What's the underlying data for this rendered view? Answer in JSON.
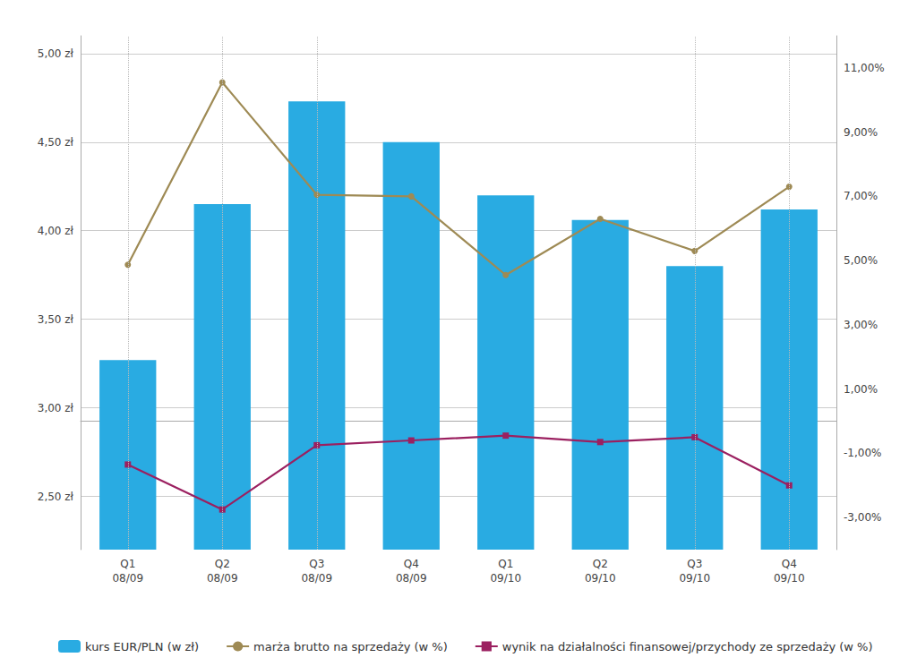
{
  "chart_data": {
    "type": "bar",
    "categories": [
      "Q1\n08/09",
      "Q2\n08/09",
      "Q3\n08/09",
      "Q4\n08/09",
      "Q1\n09/10",
      "Q2\n09/10",
      "Q3\n09/10",
      "Q4\n09/10"
    ],
    "series": [
      {
        "name": "kurs EUR/PLN (w zł)",
        "type": "bar",
        "color": "#29ABE2",
        "values": [
          3.27,
          4.15,
          4.73,
          4.5,
          4.2,
          4.06,
          3.8,
          4.12
        ]
      },
      {
        "name": "marża brutto na sprzedaży (w %)",
        "type": "line",
        "color": "#9E8A54",
        "marker": "circle",
        "axis": "y2",
        "values": [
          4.87,
          10.55,
          7.05,
          7.0,
          4.55,
          6.3,
          5.3,
          7.3
        ]
      },
      {
        "name": "wynik na działalności finansowej/przychody ze sprzedaży (w %)",
        "type": "line",
        "color": "#9B2060",
        "marker": "square",
        "axis": "y2",
        "values": [
          -1.35,
          -2.75,
          -0.75,
          -0.6,
          -0.45,
          -0.65,
          -0.5,
          -2.0
        ]
      }
    ],
    "ylim": [
      2.2,
      5.1
    ],
    "yticks": [
      {
        "value": 2.5,
        "label": "2,50 zł"
      },
      {
        "value": 3.0,
        "label": "3,00 zł"
      },
      {
        "value": 3.5,
        "label": "3,50 zł"
      },
      {
        "value": 4.0,
        "label": "4,00 zł"
      },
      {
        "value": 4.5,
        "label": "4,50 zł"
      },
      {
        "value": 5.0,
        "label": "5,00 zł"
      }
    ],
    "y2lim": [
      -4.0,
      12.0
    ],
    "y2ticks": [
      {
        "value": -3.0,
        "label": "-3,00%"
      },
      {
        "value": -1.0,
        "label": "-1,00%"
      },
      {
        "value": 1.0,
        "label": "1,00%"
      },
      {
        "value": 3.0,
        "label": "3,00%"
      },
      {
        "value": 5.0,
        "label": "5,00%"
      },
      {
        "value": 7.0,
        "label": "7,00%"
      },
      {
        "value": 9.0,
        "label": "9,00%"
      },
      {
        "value": 11.0,
        "label": "11,00%"
      }
    ],
    "vlines": [
      "Q1\n08/09",
      "Q2\n08/09",
      "Q3\n08/09",
      "Q3\n09/10",
      "Q4\n09/10"
    ],
    "grid": true,
    "legend": "bottom"
  }
}
